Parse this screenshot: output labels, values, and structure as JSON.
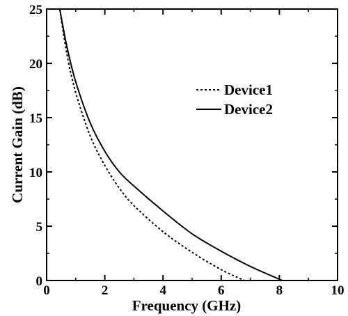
{
  "chart_data": {
    "type": "line",
    "title": "",
    "xlabel": "Frequency (GHz)",
    "ylabel": "Current Gain (dB)",
    "xlim": [
      0,
      10
    ],
    "ylim": [
      0,
      25
    ],
    "xticks": [
      0,
      2,
      4,
      6,
      8,
      10
    ],
    "yticks": [
      0,
      5,
      10,
      15,
      20,
      25
    ],
    "xtick_labels": [
      "0",
      "2",
      "4",
      "6",
      "8",
      "10"
    ],
    "ytick_labels": [
      "0",
      "5",
      "10",
      "15",
      "20",
      "25"
    ],
    "grid": false,
    "legend_position": "upper-right",
    "series": [
      {
        "name": "Device1",
        "style": "dashed",
        "color": "#000000",
        "x": [
          0.45,
          0.7,
          1.0,
          1.5,
          2.0,
          2.5,
          3.0,
          4.0,
          5.0,
          6.0,
          6.8
        ],
        "y": [
          25.0,
          20.8,
          17.3,
          13.3,
          10.6,
          8.5,
          6.9,
          4.5,
          2.6,
          1.0,
          0.0
        ]
      },
      {
        "name": "Device2",
        "style": "solid",
        "color": "#000000",
        "x": [
          0.45,
          0.7,
          1.0,
          1.5,
          2.0,
          2.5,
          3.0,
          4.0,
          5.0,
          6.0,
          7.0,
          8.1
        ],
        "y": [
          25.0,
          21.5,
          18.3,
          14.5,
          11.9,
          10.0,
          8.7,
          6.4,
          4.3,
          2.7,
          1.3,
          0.0
        ]
      }
    ]
  }
}
